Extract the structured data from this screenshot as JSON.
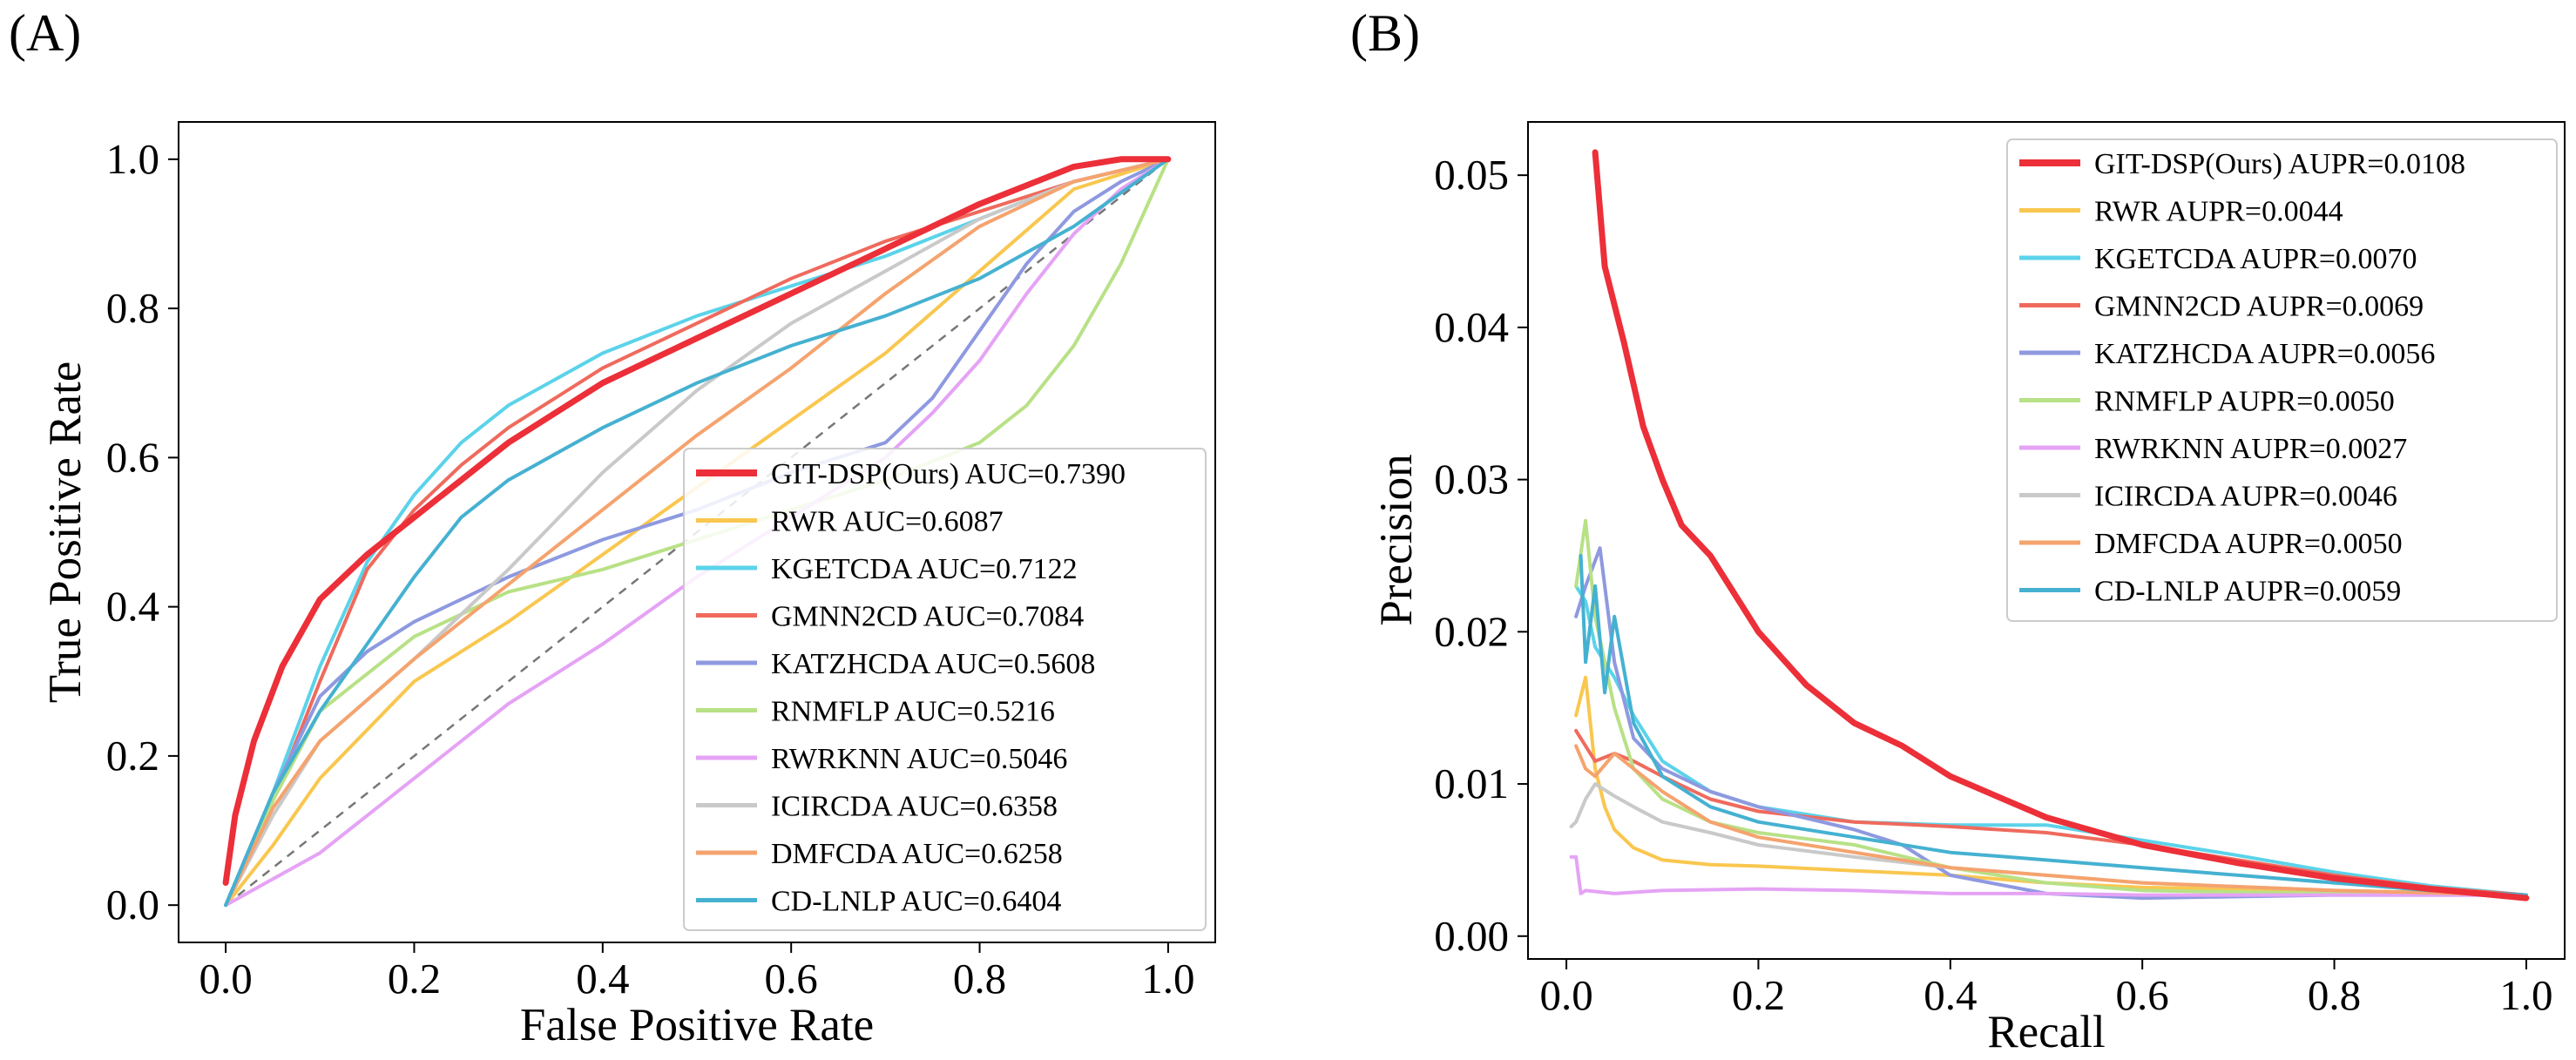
{
  "panels": {
    "a": {
      "label": "(A)"
    },
    "b": {
      "label": "(B)"
    }
  },
  "chart_data": [
    {
      "type": "line",
      "xlabel": "False Positive Rate",
      "ylabel": "True Positive Rate",
      "xlim": [
        -0.05,
        1.05
      ],
      "ylim": [
        -0.05,
        1.05
      ],
      "xticks": [
        "0.0",
        "0.2",
        "0.4",
        "0.6",
        "0.8",
        "1.0"
      ],
      "yticks": [
        "0.0",
        "0.2",
        "0.4",
        "0.6",
        "0.8",
        "1.0"
      ],
      "legend_position": "lower-right",
      "grid": false,
      "diagonal": {
        "color": "#777777",
        "style": "dashed"
      },
      "series": [
        {
          "name": "GIT-DSP(Ours) AUC=0.7390",
          "color": "#EC2F38",
          "width": 7,
          "x": [
            0,
            0.01,
            0.03,
            0.06,
            0.1,
            0.15,
            0.2,
            0.3,
            0.4,
            0.5,
            0.6,
            0.7,
            0.8,
            0.9,
            0.95,
            1.0
          ],
          "y": [
            0.03,
            0.12,
            0.22,
            0.32,
            0.41,
            0.47,
            0.52,
            0.62,
            0.7,
            0.76,
            0.82,
            0.88,
            0.94,
            0.99,
            1.0,
            1.0
          ]
        },
        {
          "name": "RWR AUC=0.6087",
          "color": "#F9C74F",
          "width": 4,
          "x": [
            0,
            0.05,
            0.1,
            0.2,
            0.3,
            0.4,
            0.5,
            0.6,
            0.7,
            0.8,
            0.9,
            1.0
          ],
          "y": [
            0.0,
            0.08,
            0.17,
            0.3,
            0.38,
            0.47,
            0.56,
            0.65,
            0.74,
            0.85,
            0.96,
            1.0
          ]
        },
        {
          "name": "KGETCDA AUC=0.7122",
          "color": "#5BD3EA",
          "width": 4,
          "x": [
            0,
            0.05,
            0.1,
            0.15,
            0.2,
            0.25,
            0.3,
            0.4,
            0.5,
            0.6,
            0.7,
            0.8,
            0.9,
            1.0
          ],
          "y": [
            0.0,
            0.15,
            0.32,
            0.46,
            0.55,
            0.62,
            0.67,
            0.74,
            0.79,
            0.83,
            0.87,
            0.92,
            0.97,
            1.0
          ]
        },
        {
          "name": "GMNN2CD AUC=0.7084",
          "color": "#EF6A5D",
          "width": 4,
          "x": [
            0,
            0.05,
            0.1,
            0.15,
            0.2,
            0.25,
            0.3,
            0.4,
            0.5,
            0.6,
            0.7,
            0.8,
            0.9,
            1.0
          ],
          "y": [
            0.0,
            0.14,
            0.3,
            0.45,
            0.53,
            0.59,
            0.64,
            0.72,
            0.78,
            0.84,
            0.89,
            0.93,
            0.97,
            1.0
          ]
        },
        {
          "name": "KATZHCDA AUC=0.5608",
          "color": "#8E99E0",
          "width": 4,
          "x": [
            0,
            0.05,
            0.1,
            0.15,
            0.2,
            0.3,
            0.4,
            0.5,
            0.6,
            0.7,
            0.75,
            0.8,
            0.85,
            0.9,
            0.95,
            1.0
          ],
          "y": [
            0.0,
            0.15,
            0.28,
            0.34,
            0.38,
            0.44,
            0.49,
            0.53,
            0.58,
            0.62,
            0.68,
            0.77,
            0.86,
            0.93,
            0.97,
            1.0
          ]
        },
        {
          "name": "RNMFLP AUC=0.5216",
          "color": "#B8E186",
          "width": 4,
          "x": [
            0,
            0.05,
            0.1,
            0.2,
            0.3,
            0.4,
            0.5,
            0.6,
            0.7,
            0.8,
            0.85,
            0.9,
            0.95,
            1.0
          ],
          "y": [
            0.0,
            0.14,
            0.26,
            0.36,
            0.42,
            0.45,
            0.49,
            0.53,
            0.57,
            0.62,
            0.67,
            0.75,
            0.86,
            1.0
          ]
        },
        {
          "name": "RWRKNN AUC=0.5046",
          "color": "#E5A3F5",
          "width": 4,
          "x": [
            0,
            0.1,
            0.15,
            0.2,
            0.3,
            0.4,
            0.5,
            0.6,
            0.7,
            0.75,
            0.8,
            0.85,
            0.9,
            0.95,
            1.0
          ],
          "y": [
            0.0,
            0.07,
            0.12,
            0.17,
            0.27,
            0.35,
            0.44,
            0.52,
            0.6,
            0.66,
            0.73,
            0.82,
            0.9,
            0.96,
            1.0
          ]
        },
        {
          "name": "ICIRCDA AUC=0.6358",
          "color": "#C9C9C9",
          "width": 4,
          "x": [
            0,
            0.05,
            0.1,
            0.2,
            0.3,
            0.4,
            0.5,
            0.6,
            0.7,
            0.8,
            0.9,
            1.0
          ],
          "y": [
            0.0,
            0.12,
            0.22,
            0.33,
            0.45,
            0.58,
            0.69,
            0.78,
            0.85,
            0.92,
            0.97,
            1.0
          ]
        },
        {
          "name": "DMFCDA AUC=0.6258",
          "color": "#F5A36E",
          "width": 4,
          "x": [
            0,
            0.05,
            0.1,
            0.2,
            0.3,
            0.4,
            0.5,
            0.6,
            0.7,
            0.8,
            0.9,
            1.0
          ],
          "y": [
            0.0,
            0.13,
            0.22,
            0.33,
            0.43,
            0.53,
            0.63,
            0.72,
            0.82,
            0.91,
            0.97,
            1.0
          ]
        },
        {
          "name": "CD-LNLP AUC=0.6404",
          "color": "#45B1D1",
          "width": 4,
          "x": [
            0,
            0.05,
            0.1,
            0.15,
            0.2,
            0.25,
            0.3,
            0.4,
            0.5,
            0.6,
            0.7,
            0.8,
            0.9,
            1.0
          ],
          "y": [
            0.0,
            0.15,
            0.26,
            0.35,
            0.44,
            0.52,
            0.57,
            0.64,
            0.7,
            0.75,
            0.79,
            0.84,
            0.91,
            1.0
          ]
        }
      ]
    },
    {
      "type": "line",
      "xlabel": "Recall",
      "ylabel": "Precision",
      "xlim": [
        -0.04,
        1.04
      ],
      "ylim": [
        -0.0015,
        0.0535
      ],
      "xticks": [
        "0.0",
        "0.2",
        "0.4",
        "0.6",
        "0.8",
        "1.0"
      ],
      "yticks": [
        "0.00",
        "0.01",
        "0.02",
        "0.03",
        "0.04",
        "0.05"
      ],
      "legend_position": "upper-right",
      "grid": false,
      "series": [
        {
          "name": "GIT-DSP(Ours) AUPR=0.0108",
          "color": "#EC2F38",
          "width": 7,
          "x": [
            0.03,
            0.04,
            0.06,
            0.08,
            0.1,
            0.12,
            0.15,
            0.2,
            0.25,
            0.3,
            0.35,
            0.4,
            0.5,
            0.6,
            0.7,
            0.8,
            0.9,
            1.0
          ],
          "y": [
            0.0515,
            0.044,
            0.039,
            0.0335,
            0.03,
            0.027,
            0.025,
            0.02,
            0.0165,
            0.014,
            0.0125,
            0.0105,
            0.0078,
            0.006,
            0.0048,
            0.0038,
            0.0031,
            0.0025
          ]
        },
        {
          "name": "RWR AUPR=0.0044",
          "color": "#F9C74F",
          "width": 4,
          "x": [
            0.01,
            0.02,
            0.03,
            0.04,
            0.05,
            0.07,
            0.1,
            0.15,
            0.2,
            0.3,
            0.4,
            0.5,
            0.6,
            0.8,
            1.0
          ],
          "y": [
            0.0145,
            0.017,
            0.011,
            0.0085,
            0.007,
            0.0058,
            0.005,
            0.0047,
            0.0046,
            0.0043,
            0.004,
            0.0035,
            0.0032,
            0.003,
            0.0027
          ]
        },
        {
          "name": "KGETCDA AUPR=0.0070",
          "color": "#5BD3EA",
          "width": 4,
          "x": [
            0.01,
            0.02,
            0.03,
            0.05,
            0.07,
            0.1,
            0.15,
            0.2,
            0.3,
            0.4,
            0.5,
            0.6,
            0.7,
            0.8,
            0.9,
            1.0
          ],
          "y": [
            0.023,
            0.022,
            0.019,
            0.017,
            0.0145,
            0.0115,
            0.0095,
            0.0085,
            0.0075,
            0.0073,
            0.0073,
            0.0063,
            0.0053,
            0.0042,
            0.0033,
            0.0027
          ]
        },
        {
          "name": "GMNN2CD AUPR=0.0069",
          "color": "#EF6A5D",
          "width": 4,
          "x": [
            0.01,
            0.02,
            0.03,
            0.05,
            0.07,
            0.1,
            0.15,
            0.2,
            0.3,
            0.4,
            0.5,
            0.6,
            0.7,
            0.8,
            0.9,
            1.0
          ],
          "y": [
            0.0135,
            0.0125,
            0.0115,
            0.012,
            0.0115,
            0.0105,
            0.009,
            0.0082,
            0.0075,
            0.0072,
            0.0068,
            0.006,
            0.005,
            0.004,
            0.0032,
            0.0027
          ]
        },
        {
          "name": "KATZHCDA AUPR=0.0056",
          "color": "#8E99E0",
          "width": 4,
          "x": [
            0.01,
            0.02,
            0.035,
            0.05,
            0.07,
            0.1,
            0.15,
            0.2,
            0.3,
            0.35,
            0.4,
            0.5,
            0.6,
            0.8,
            1.0
          ],
          "y": [
            0.021,
            0.023,
            0.0255,
            0.018,
            0.013,
            0.011,
            0.0095,
            0.0085,
            0.007,
            0.006,
            0.004,
            0.0028,
            0.0025,
            0.0027,
            0.0027
          ]
        },
        {
          "name": "RNMFLP AUPR=0.0050",
          "color": "#B8E186",
          "width": 4,
          "x": [
            0.01,
            0.02,
            0.03,
            0.05,
            0.07,
            0.1,
            0.15,
            0.2,
            0.3,
            0.4,
            0.5,
            0.6,
            0.8,
            1.0
          ],
          "y": [
            0.023,
            0.0273,
            0.021,
            0.015,
            0.011,
            0.009,
            0.0075,
            0.0068,
            0.006,
            0.0045,
            0.0035,
            0.003,
            0.0028,
            0.0027
          ]
        },
        {
          "name": "RWRKNN AUPR=0.0027",
          "color": "#E5A3F5",
          "width": 4,
          "x": [
            0.005,
            0.01,
            0.015,
            0.02,
            0.05,
            0.1,
            0.2,
            0.3,
            0.4,
            0.5,
            0.6,
            0.8,
            1.0
          ],
          "y": [
            0.0052,
            0.0052,
            0.0028,
            0.003,
            0.0028,
            0.003,
            0.0031,
            0.003,
            0.0028,
            0.0028,
            0.0027,
            0.0027,
            0.0027
          ]
        },
        {
          "name": "ICIRCDA AUPR=0.0046",
          "color": "#C9C9C9",
          "width": 4,
          "x": [
            0.005,
            0.01,
            0.02,
            0.03,
            0.05,
            0.07,
            0.1,
            0.15,
            0.2,
            0.3,
            0.4,
            0.5,
            0.6,
            0.8,
            1.0
          ],
          "y": [
            0.0072,
            0.0075,
            0.009,
            0.01,
            0.0092,
            0.0085,
            0.0075,
            0.0068,
            0.006,
            0.0052,
            0.0045,
            0.004,
            0.0035,
            0.003,
            0.0027
          ]
        },
        {
          "name": "DMFCDA AUPR=0.0050",
          "color": "#F5A36E",
          "width": 4,
          "x": [
            0.01,
            0.02,
            0.03,
            0.05,
            0.07,
            0.1,
            0.15,
            0.2,
            0.3,
            0.4,
            0.5,
            0.6,
            0.8,
            1.0
          ],
          "y": [
            0.0125,
            0.011,
            0.0105,
            0.012,
            0.011,
            0.0095,
            0.0075,
            0.0065,
            0.0055,
            0.0045,
            0.004,
            0.0035,
            0.003,
            0.0027
          ]
        },
        {
          "name": "CD-LNLP AUPR=0.0059",
          "color": "#45B1D1",
          "width": 4,
          "x": [
            0.015,
            0.02,
            0.03,
            0.04,
            0.05,
            0.07,
            0.1,
            0.15,
            0.2,
            0.3,
            0.4,
            0.5,
            0.6,
            0.7,
            0.8,
            0.9,
            1.0
          ],
          "y": [
            0.025,
            0.018,
            0.023,
            0.016,
            0.021,
            0.014,
            0.0105,
            0.0085,
            0.0075,
            0.0065,
            0.0055,
            0.005,
            0.0045,
            0.004,
            0.0035,
            0.003,
            0.0027
          ]
        }
      ]
    }
  ]
}
